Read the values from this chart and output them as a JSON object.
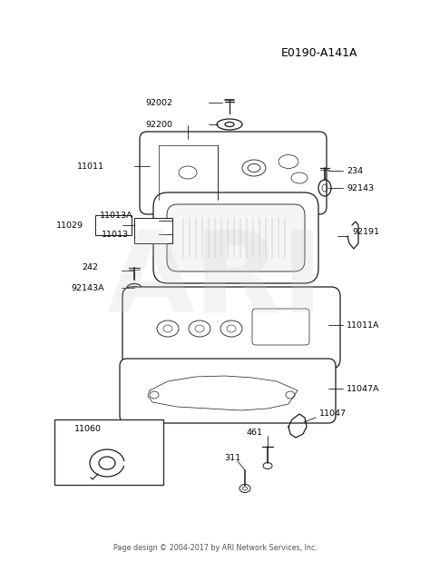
{
  "title_code": "E0190-A141A",
  "footer": "Page design © 2004-2017 by ARI Network Services, Inc.",
  "bg_color": "#ffffff",
  "text_color": "#000000",
  "line_color": "#1a1a1a",
  "watermark_text": "ARI",
  "watermark_color": "#cccccc",
  "watermark_alpha": 0.22,
  "figsize": [
    4.74,
    6.19
  ],
  "dpi": 100
}
